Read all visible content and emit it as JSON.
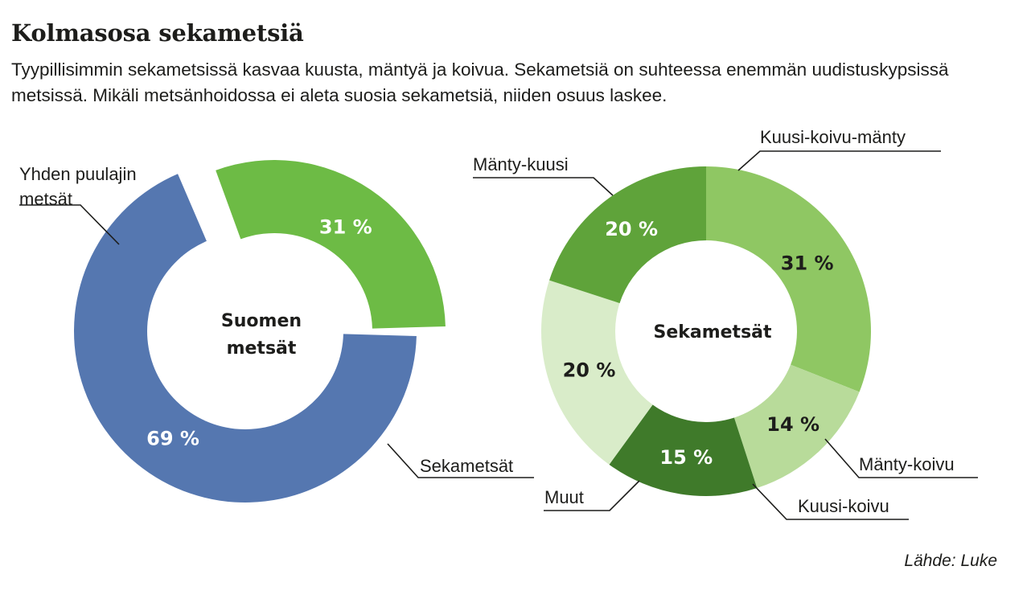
{
  "title": "Kolmasosa sekametsiä",
  "subtitle": "Tyypillisimmin sekametsissä kasvaa kuusta, mäntyä ja koivua. Sekametsiä on suhteessa enemmän uudistuskypsissä metsissä. Mikäli metsänhoidossa ei aleta suosia sekametsiä, niiden osuus laskee.",
  "source": "Lähde: Luke",
  "chart_data": [
    {
      "type": "pie",
      "donut": true,
      "center_label": [
        "Suomen",
        "metsät"
      ],
      "slices": [
        {
          "label": [
            "Yhden puulajin",
            "metsät"
          ],
          "value": 69,
          "value_label": "69 %",
          "color": "#5577b0"
        },
        {
          "label": [
            "Sekametsät"
          ],
          "value": 31,
          "value_label": "31 %",
          "color": "#6dbb45"
        }
      ]
    },
    {
      "type": "pie",
      "donut": true,
      "center_label": [
        "Sekametsät"
      ],
      "slices": [
        {
          "label": [
            "Kuusi-koivu-mänty"
          ],
          "value": 31,
          "value_label": "31 %",
          "color": "#8fc763"
        },
        {
          "label": [
            "Mänty-koivu"
          ],
          "value": 14,
          "value_label": "14 %",
          "color": "#b8db9a"
        },
        {
          "label": [
            "Kuusi-koivu"
          ],
          "value": 15,
          "value_label": "15 %",
          "color": "#3f7a2a"
        },
        {
          "label": [
            "Muut"
          ],
          "value": 20,
          "value_label": "20 %",
          "color": "#d9ecc9"
        },
        {
          "label": [
            "Mänty-kuusi"
          ],
          "value": 20,
          "value_label": "20 %",
          "color": "#5fa33a"
        }
      ]
    }
  ]
}
